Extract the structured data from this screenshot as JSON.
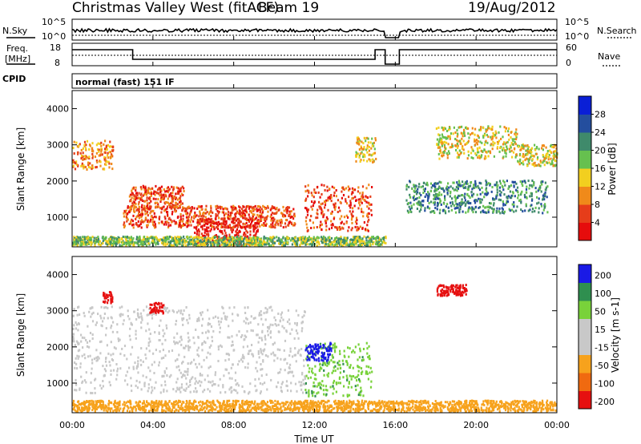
{
  "header": {
    "station": "Christmas Valley West (fitACF)",
    "beam": "Beam 19",
    "date": "19/Aug/2012"
  },
  "nsky_panel": {
    "left_label": "N.Sky",
    "right_label": "N.Search",
    "left_ticks": [
      "10^5",
      "10^0"
    ],
    "right_ticks": [
      "10^5",
      "10^0"
    ]
  },
  "freq_panel": {
    "left_label_1": "Freq.",
    "left_label_2": "[MHz]",
    "left_ticks": [
      "18",
      "8"
    ],
    "right_label": "Nave",
    "right_ticks": [
      "60",
      "0"
    ]
  },
  "cpid": {
    "label": "CPID",
    "text": "normal (fast) 151 IF"
  },
  "xaxis": {
    "label": "Time UT",
    "ticks": [
      "00:00",
      "04:00",
      "08:00",
      "12:00",
      "16:00",
      "20:00",
      "00:00"
    ]
  },
  "chart_data": [
    {
      "type": "heatmap",
      "name": "power",
      "ylabel": "Slant Range [km]",
      "xlabel": "Time UT",
      "ylim": [
        180,
        4500
      ],
      "xlim": [
        "00:00",
        "24:00"
      ],
      "yticks": [
        "1000",
        "2000",
        "3000",
        "4000"
      ],
      "colorbar": {
        "label": "Power [dB]",
        "ticks": [
          "4",
          "8",
          "12",
          "16",
          "20",
          "24",
          "28"
        ],
        "colors": [
          "#0a1fd6",
          "#244e9e",
          "#3f8a6b",
          "#66c04f",
          "#f2cf1f",
          "#f08a1a",
          "#e63d1a",
          "#e60c0c"
        ]
      },
      "regions": [
        {
          "t": [
            0.0,
            2.0
          ],
          "range": [
            2300,
            3100
          ],
          "level": 5
        },
        {
          "t": [
            2.8,
            5.5
          ],
          "range": [
            1250,
            1850
          ],
          "level": 6
        },
        {
          "t": [
            2.5,
            11.0
          ],
          "range": [
            700,
            1300
          ],
          "level": 6
        },
        {
          "t": [
            6.0,
            9.2
          ],
          "range": [
            200,
            950
          ],
          "level": 7
        },
        {
          "t": [
            11.5,
            14.8
          ],
          "range": [
            600,
            1900
          ],
          "level": 6
        },
        {
          "t": [
            14.0,
            15.0
          ],
          "range": [
            2500,
            3200
          ],
          "level": 4
        },
        {
          "t": [
            18.0,
            22.0
          ],
          "range": [
            2600,
            3500
          ],
          "level": 4
        },
        {
          "t": [
            22.0,
            24.0
          ],
          "range": [
            2400,
            3000
          ],
          "level": 4
        },
        {
          "t": [
            16.5,
            23.5
          ],
          "range": [
            1100,
            2000
          ],
          "level": 2
        },
        {
          "t": [
            0.0,
            15.5
          ],
          "range": [
            200,
            450
          ],
          "level": 3
        }
      ]
    },
    {
      "type": "heatmap",
      "name": "velocity",
      "ylabel": "Slant Range [km]",
      "xlabel": "Time UT",
      "ylim": [
        180,
        4500
      ],
      "xlim": [
        "00:00",
        "24:00"
      ],
      "yticks": [
        "1000",
        "2000",
        "3000",
        "4000"
      ],
      "colorbar": {
        "label": "Velocity [m s-1]",
        "ticks": [
          "200",
          "100",
          "50",
          "15",
          "-15",
          "-50",
          "-100",
          "-200"
        ],
        "colors": [
          "#1a1ae6",
          "#2f8f4f",
          "#79d23a",
          "#c8c8c8",
          "#c8c8c8",
          "#f7a21c",
          "#f06a10",
          "#e61010"
        ]
      },
      "regions": [
        {
          "t": [
            0.0,
            11.5
          ],
          "range": [
            700,
            3100
          ],
          "velocity": 0
        },
        {
          "t": [
            11.5,
            14.8
          ],
          "range": [
            600,
            2100
          ],
          "velocity": 60
        },
        {
          "t": [
            11.5,
            12.8
          ],
          "range": [
            1600,
            2100
          ],
          "velocity": 180
        },
        {
          "t": [
            18.0,
            19.5
          ],
          "range": [
            3400,
            3700
          ],
          "velocity": -180
        },
        {
          "t": [
            1.5,
            2.0
          ],
          "range": [
            3200,
            3500
          ],
          "velocity": -180
        },
        {
          "t": [
            3.8,
            4.5
          ],
          "range": [
            2900,
            3200
          ],
          "velocity": -180
        },
        {
          "t": [
            0.0,
            24.0
          ],
          "range": [
            200,
            500
          ],
          "velocity": -50
        }
      ]
    }
  ]
}
